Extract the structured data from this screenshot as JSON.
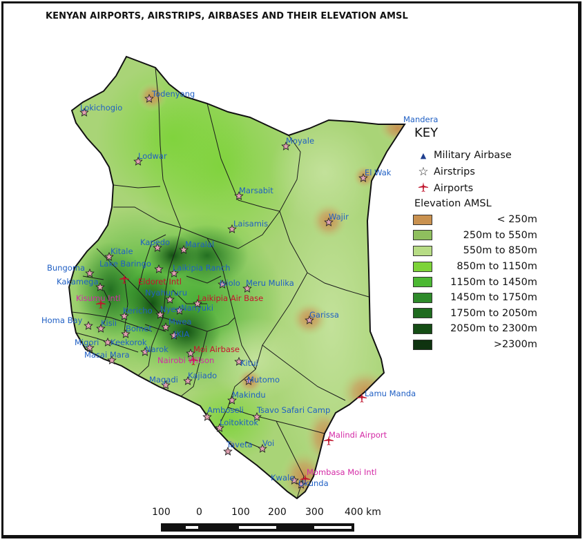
{
  "title": "KENYAN AIRPORTS, AIRSTRIPS, AIRBASES AND THEIR ELEVATION AMSL",
  "colors": {
    "label_blue": "#1f5fc4",
    "label_magenta": "#d42aa6",
    "label_red": "#c8102e",
    "airstrip_marker": "#e0a0b0",
    "airport_marker": "#c0162e",
    "military_marker": "#1f3f8f"
  },
  "map_labels": {
    "lokichogio": "Lokichogio",
    "todenyang": "Todenyang",
    "lodwar": "Lodwar",
    "mandera": "Mandera",
    "moyale": "Moyale",
    "el_wak": "El Wak",
    "marsabit": "Marsabit",
    "wajir": "Wajir",
    "laisamis": "Laisamis",
    "kapedo": "Kapedo",
    "maralal": "Maralal",
    "kitale": "Kitale",
    "lake_baringo": "Lake Baringo",
    "laikipia_ranch": "Laikipia Ranch",
    "bungoma": "Bungoma",
    "kakamega": "Kakamega",
    "eldoret_intl": "Eldoret Intl",
    "isiolo": "Isiolo",
    "meru_mulika": "Meru Mulika",
    "kisumu_intl": "Kisumu Intl",
    "nyahururu": "Nyahururu",
    "laikipia_air_base": "Laikipia Air Base",
    "nanyuki": "Nanyuki",
    "kericho": "Kericho",
    "homa_bay": "Homa Bay",
    "kisii": "Kisii",
    "nyeri": "Nyeri",
    "mwea": "Mwea",
    "garissa": "Garissa",
    "bomet": "Bomet",
    "migori": "Migori",
    "keekorok": "Keekorok",
    "narok": "Narok",
    "masai_mara": "Masai Mara",
    "moi_airbase": "Moi Airbase",
    "kitui": "Kitui",
    "nairobi_wilson": "Nairobi Wilson",
    "jkia": "JKIA",
    "magadi": "Magadi",
    "kajiado": "Kajiado",
    "mutomo": "Mutomo",
    "lamu_manda": "Lamu Manda",
    "makindu": "Makindu",
    "amboseli": "Amboseli",
    "tsavo_safari_camp": "Tsavo Safari Camp",
    "loitokitok": "Loitokitok",
    "malindi_airport": "Malindi Airport",
    "taveta": "Taveta",
    "voi": "Voi",
    "mombasa_moi_intl": "Mombasa Moi Intl",
    "kwale": "Kwale",
    "ukunda": "Ukunda"
  },
  "key": {
    "title": "KEY",
    "military": {
      "icon": "triangle-icon",
      "label": "Military Airbase"
    },
    "airstrips": {
      "icon": "star-icon",
      "label": "Airstrips"
    },
    "airports": {
      "icon": "airplane-icon",
      "label": "Airports"
    },
    "elevation_title": "Elevation AMSL",
    "elevation": [
      {
        "label": "< 250m",
        "color": "#c9914f"
      },
      {
        "label": "250m to 550m",
        "color": "#8fbf5e"
      },
      {
        "label": "550m to 850m",
        "color": "#b7dc85"
      },
      {
        "label": "850m to 1150m",
        "color": "#7dd339"
      },
      {
        "label": "1150m to 1450m",
        "color": "#4cb833"
      },
      {
        "label": "1450m to 1750m",
        "color": "#2e8a2a"
      },
      {
        "label": "1750m to 2050m",
        "color": "#1f6b1f"
      },
      {
        "label": "2050m to 2300m",
        "color": "#154d15"
      },
      {
        "label": ">2300m",
        "color": "#0f3310"
      }
    ]
  },
  "scale": {
    "ticks": [
      "100",
      "0",
      "100",
      "200",
      "300",
      "400 km"
    ]
  }
}
